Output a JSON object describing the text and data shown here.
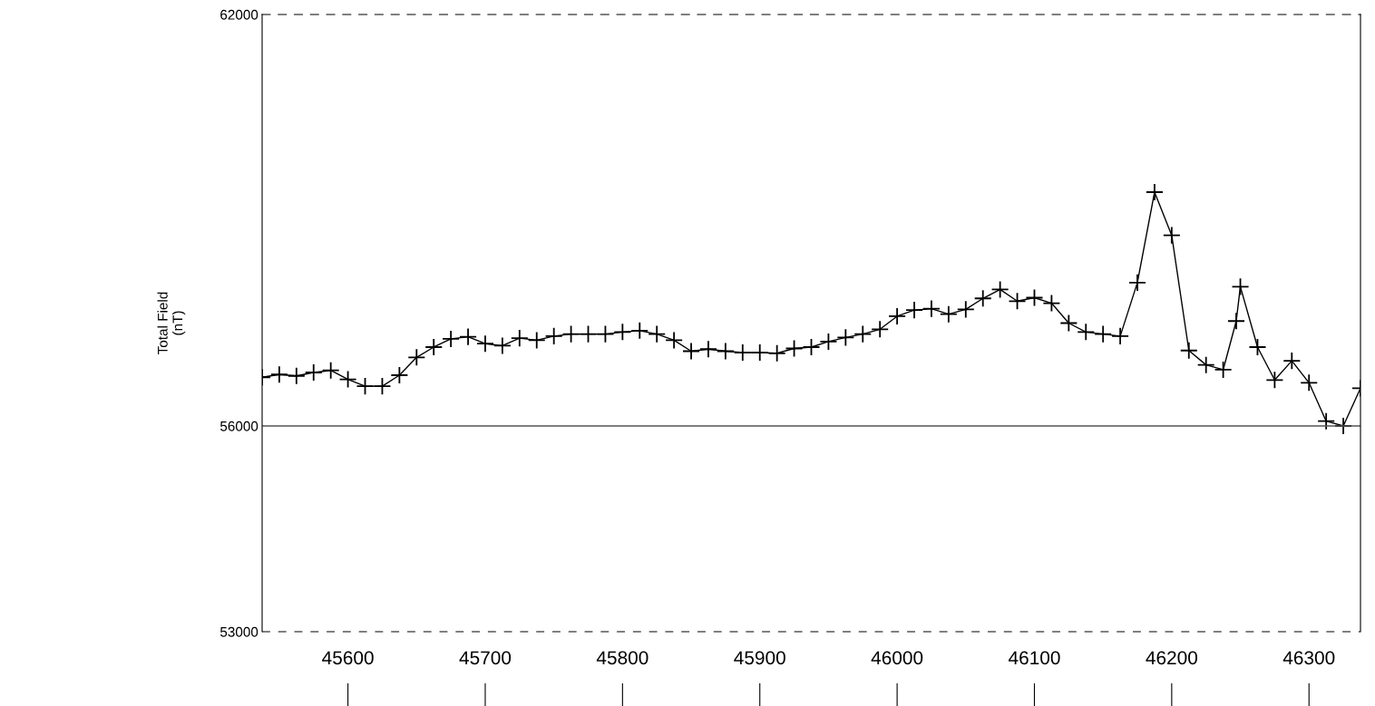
{
  "chart_data": {
    "type": "line",
    "ylabel": "Total Field\n(nT)",
    "x": [
      45537.5,
      45550,
      45562.5,
      45575,
      45587.5,
      45600,
      45612.5,
      45625,
      45637.5,
      45650,
      45662.5,
      45675,
      45687.5,
      45700,
      45712.5,
      45725,
      45737.5,
      45750,
      45762.5,
      45775,
      45787.5,
      45800,
      45812.5,
      45825,
      45837.5,
      45850,
      45862.5,
      45875,
      45887.5,
      45900,
      45912.5,
      45925,
      45937.5,
      45950,
      45962.5,
      45975,
      45987.5,
      46000,
      46012.5,
      46025,
      46037.5,
      46050,
      46062.5,
      46075,
      46087.5,
      46100,
      46112.5,
      46125,
      46137.5,
      46150,
      46162.5,
      46175,
      46187.5,
      46200,
      46212.5,
      46225,
      46237.5,
      46247,
      46250,
      46262.5,
      46275,
      46287.5,
      46300,
      46312.5,
      46325,
      46337.5
    ],
    "series": [
      {
        "color": "#000000",
        "values": [
          56710,
          56750,
          56730,
          56780,
          56810,
          56680,
          56580,
          56580,
          56740,
          57000,
          57150,
          57270,
          57300,
          57200,
          57170,
          57280,
          57250,
          57310,
          57340,
          57340,
          57340,
          57370,
          57390,
          57340,
          57250,
          57090,
          57120,
          57090,
          57070,
          57070,
          57060,
          57130,
          57150,
          57230,
          57290,
          57340,
          57410,
          57600,
          57690,
          57710,
          57630,
          57700,
          57860,
          57990,
          57820,
          57870,
          57790,
          57500,
          57370,
          57340,
          57310,
          58090,
          59410,
          58780,
          57100,
          56890,
          56820,
          57530,
          58030,
          57150,
          56670,
          56950,
          56630,
          56070,
          56000,
          56550
        ]
      }
    ],
    "xlim": [
      45537.5,
      46337.5
    ],
    "xticks": [
      45600,
      45700,
      45800,
      45900,
      46000,
      46100,
      46200,
      46300
    ],
    "ylim": [
      53000,
      62000
    ],
    "yticks": [
      53000,
      56000,
      62000
    ],
    "ref_lines": [
      {
        "axis": "y",
        "value": 56000,
        "color": "#555555",
        "line_style": "solid"
      }
    ],
    "marker": "cross",
    "line_style": "solid",
    "grid": false,
    "legend": false
  }
}
